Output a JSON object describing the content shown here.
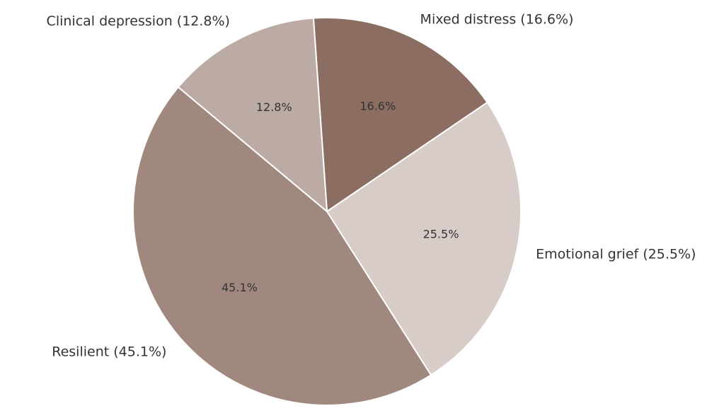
{
  "chart_data": {
    "type": "pie",
    "title": "",
    "start_angle_deg_from_top": -4,
    "direction": "clockwise",
    "slices": [
      {
        "label": "Mixed distress (16.6%)",
        "pct_label": "16.6%",
        "value": 16.6,
        "color": "#8B6E61"
      },
      {
        "label": "Emotional grief (25.5%)",
        "pct_label": "25.5%",
        "value": 25.5,
        "color": "#D7CCC8"
      },
      {
        "label": "Resilient (45.1%)",
        "pct_label": "45.1%",
        "value": 45.1,
        "color": "#A1887F"
      },
      {
        "label": "Clinical depression (12.8%)",
        "pct_label": "12.8%",
        "value": 12.8,
        "color": "#BCAAA4"
      }
    ]
  }
}
